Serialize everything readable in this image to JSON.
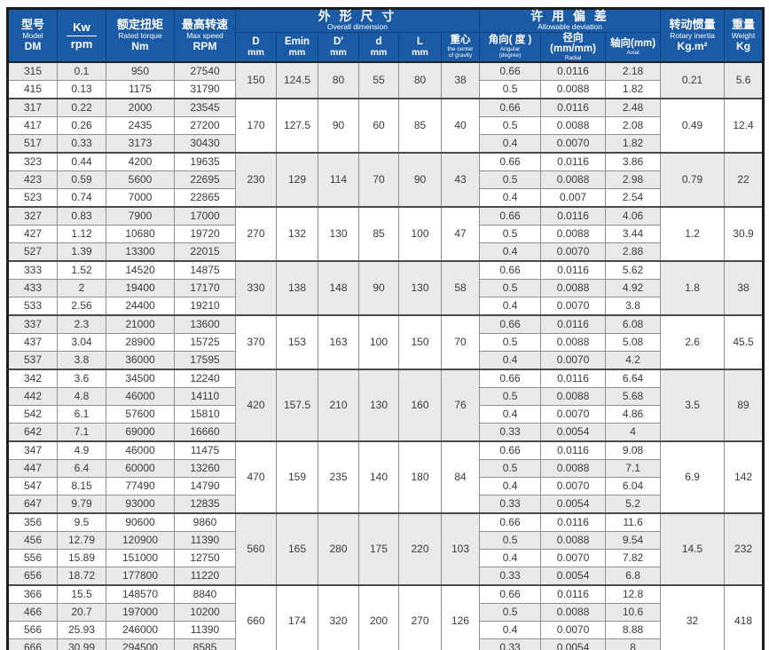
{
  "table": {
    "header": {
      "model": {
        "zh": "型号",
        "en": "Model",
        "code": "DM"
      },
      "power": {
        "top": "Kw",
        "bottom": "rpm"
      },
      "torque": {
        "zh": "额定扭矩",
        "en": "Rated torque",
        "unit": "Nm"
      },
      "speed": {
        "zh": "最高转速",
        "en": "Max speed",
        "unit": "RPM"
      },
      "dimension_group": {
        "zh": "外 形 尺 寸",
        "en": "Overall dimension"
      },
      "dim_cols": [
        {
          "top": "D",
          "bottom": "mm"
        },
        {
          "top": "Emin",
          "bottom": "mm"
        },
        {
          "top": "D′",
          "bottom": "mm"
        },
        {
          "top": "d",
          "bottom": "mm"
        },
        {
          "top": "L",
          "bottom": "mm"
        },
        {
          "top": "重心",
          "bottom": "the center\nof gravity"
        }
      ],
      "deviation_group": {
        "zh": "许 用 偏 差",
        "en": "Allowable deviation"
      },
      "dev_cols": [
        {
          "top": "角向( 度 )",
          "bottom": "Angular\n(degree)"
        },
        {
          "top": "径向(mm/mm)",
          "bottom": "Radial"
        },
        {
          "top": "轴向(mm)",
          "bottom": "Axial"
        }
      ],
      "inertia": {
        "zh": "转动惯量",
        "en": "Rotary inertia",
        "unit": "Kg.m²"
      },
      "weight": {
        "zh": "重量",
        "en": "Weight",
        "unit": "Kg"
      }
    },
    "colors": {
      "header_blue": "#1b5aa5",
      "stripe_gray": "#e9e9e9",
      "border_dark": "#1c1c1c"
    },
    "groups": [
      {
        "dims": {
          "D": "150",
          "Emin": "124.5",
          "Dp": "80",
          "d": "55",
          "L": "80",
          "cg": "38"
        },
        "inertia": "0.21",
        "weight": "5.6",
        "rows": [
          {
            "model": "315",
            "kw": "0.1",
            "torque": "950",
            "speed": "27540",
            "angular": "0.66",
            "radial": "0.0116",
            "axial": "2.18"
          },
          {
            "model": "415",
            "kw": "0.13",
            "torque": "1175",
            "speed": "31790",
            "angular": "0.5",
            "radial": "0.0088",
            "axial": "1.82"
          }
        ]
      },
      {
        "dims": {
          "D": "170",
          "Emin": "127.5",
          "Dp": "90",
          "d": "60",
          "L": "85",
          "cg": "40"
        },
        "inertia": "0.49",
        "weight": "12.4",
        "rows": [
          {
            "model": "317",
            "kw": "0.22",
            "torque": "2000",
            "speed": "23545",
            "angular": "0.66",
            "radial": "0.0116",
            "axial": "2.48"
          },
          {
            "model": "417",
            "kw": "0.26",
            "torque": "2435",
            "speed": "27200",
            "angular": "0.5",
            "radial": "0.0088",
            "axial": "2.08"
          },
          {
            "model": "517",
            "kw": "0.33",
            "torque": "3173",
            "speed": "30430",
            "angular": "0.4",
            "radial": "0.0070",
            "axial": "1.82"
          }
        ]
      },
      {
        "dims": {
          "D": "230",
          "Emin": "129",
          "Dp": "114",
          "d": "70",
          "L": "90",
          "cg": "43"
        },
        "inertia": "0.79",
        "weight": "22",
        "rows": [
          {
            "model": "323",
            "kw": "0.44",
            "torque": "4200",
            "speed": "19635",
            "angular": "0.66",
            "radial": "0.0116",
            "axial": "3.86"
          },
          {
            "model": "423",
            "kw": "0.59",
            "torque": "5600",
            "speed": "22695",
            "angular": "0.5",
            "radial": "0.0088",
            "axial": "2.98"
          },
          {
            "model": "523",
            "kw": "0.74",
            "torque": "7000",
            "speed": "22865",
            "angular": "0.4",
            "radial": "0.007",
            "axial": "2.54"
          }
        ]
      },
      {
        "dims": {
          "D": "270",
          "Emin": "132",
          "Dp": "130",
          "d": "85",
          "L": "100",
          "cg": "47"
        },
        "inertia": "1.2",
        "weight": "30.9",
        "rows": [
          {
            "model": "327",
            "kw": "0.83",
            "torque": "7900",
            "speed": "17000",
            "angular": "0.66",
            "radial": "0.0116",
            "axial": "4.06"
          },
          {
            "model": "427",
            "kw": "1.12",
            "torque": "10680",
            "speed": "19720",
            "angular": "0.5",
            "radial": "0.0088",
            "axial": "3.44"
          },
          {
            "model": "527",
            "kw": "1.39",
            "torque": "13300",
            "speed": "22015",
            "angular": "0.4",
            "radial": "0.0070",
            "axial": "2.88"
          }
        ]
      },
      {
        "dims": {
          "D": "330",
          "Emin": "138",
          "Dp": "148",
          "d": "90",
          "L": "130",
          "cg": "58"
        },
        "inertia": "1.8",
        "weight": "38",
        "rows": [
          {
            "model": "333",
            "kw": "1.52",
            "torque": "14520",
            "speed": "14875",
            "angular": "0.66",
            "radial": "0.0116",
            "axial": "5.62"
          },
          {
            "model": "433",
            "kw": "2",
            "torque": "19400",
            "speed": "17170",
            "angular": "0.5",
            "radial": "0.0088",
            "axial": "4.92"
          },
          {
            "model": "533",
            "kw": "2.56",
            "torque": "24400",
            "speed": "19210",
            "angular": "0.4",
            "radial": "0.0070",
            "axial": "3.8"
          }
        ]
      },
      {
        "dims": {
          "D": "370",
          "Emin": "153",
          "Dp": "163",
          "d": "100",
          "L": "150",
          "cg": "70"
        },
        "inertia": "2.6",
        "weight": "45.5",
        "rows": [
          {
            "model": "337",
            "kw": "2.3",
            "torque": "21000",
            "speed": "13600",
            "angular": "0.66",
            "radial": "0.0116",
            "axial": "6.08"
          },
          {
            "model": "437",
            "kw": "3.04",
            "torque": "28900",
            "speed": "15725",
            "angular": "0.5",
            "radial": "0.0088",
            "axial": "5.08"
          },
          {
            "model": "537",
            "kw": "3.8",
            "torque": "36000",
            "speed": "17595",
            "angular": "0.4",
            "radial": "0.0070",
            "axial": "4.2"
          }
        ]
      },
      {
        "dims": {
          "D": "420",
          "Emin": "157.5",
          "Dp": "210",
          "d": "130",
          "L": "160",
          "cg": "76"
        },
        "inertia": "3.5",
        "weight": "89",
        "rows": [
          {
            "model": "342",
            "kw": "3.6",
            "torque": "34500",
            "speed": "12240",
            "angular": "0.66",
            "radial": "0.0116",
            "axial": "6.64"
          },
          {
            "model": "442",
            "kw": "4.8",
            "torque": "46000",
            "speed": "14110",
            "angular": "0.5",
            "radial": "0.0088",
            "axial": "5.68"
          },
          {
            "model": "542",
            "kw": "6.1",
            "torque": "57600",
            "speed": "15810",
            "angular": "0.4",
            "radial": "0.0070",
            "axial": "4.86"
          },
          {
            "model": "642",
            "kw": "7.1",
            "torque": "69000",
            "speed": "16660",
            "angular": "0.33",
            "radial": "0.0054",
            "axial": "4"
          }
        ]
      },
      {
        "dims": {
          "D": "470",
          "Emin": "159",
          "Dp": "235",
          "d": "140",
          "L": "180",
          "cg": "84"
        },
        "inertia": "6.9",
        "weight": "142",
        "rows": [
          {
            "model": "347",
            "kw": "4.9",
            "torque": "46000",
            "speed": "11475",
            "angular": "0.66",
            "radial": "0.0116",
            "axial": "9.08"
          },
          {
            "model": "447",
            "kw": "6.4",
            "torque": "60000",
            "speed": "13260",
            "angular": "0.5",
            "radial": "0.0088",
            "axial": "7.1"
          },
          {
            "model": "547",
            "kw": "8.15",
            "torque": "77490",
            "speed": "14790",
            "angular": "0.4",
            "radial": "0.0070",
            "axial": "6.04"
          },
          {
            "model": "647",
            "kw": "9.79",
            "torque": "93000",
            "speed": "12835",
            "angular": "0.33",
            "radial": "0.0054",
            "axial": "5.2"
          }
        ]
      },
      {
        "dims": {
          "D": "560",
          "Emin": "165",
          "Dp": "280",
          "d": "175",
          "L": "220",
          "cg": "103"
        },
        "inertia": "14.5",
        "weight": "232",
        "rows": [
          {
            "model": "356",
            "kw": "9.5",
            "torque": "90600",
            "speed": "9860",
            "angular": "0.66",
            "radial": "0.0116",
            "axial": "11.6"
          },
          {
            "model": "456",
            "kw": "12.79",
            "torque": "120900",
            "speed": "11390",
            "angular": "0.5",
            "radial": "0.0088",
            "axial": "9.54"
          },
          {
            "model": "556",
            "kw": "15.89",
            "torque": "151000",
            "speed": "12750",
            "angular": "0.4",
            "radial": "0.0070",
            "axial": "7.82"
          },
          {
            "model": "656",
            "kw": "18.72",
            "torque": "177800",
            "speed": "11220",
            "angular": "0.33",
            "radial": "0.0054",
            "axial": "6.8"
          }
        ]
      },
      {
        "dims": {
          "D": "660",
          "Emin": "174",
          "Dp": "320",
          "d": "200",
          "L": "270",
          "cg": "126"
        },
        "inertia": "32",
        "weight": "418",
        "rows": [
          {
            "model": "366",
            "kw": "15.5",
            "torque": "148570",
            "speed": "8840",
            "angular": "0.66",
            "radial": "0.0116",
            "axial": "12.8"
          },
          {
            "model": "466",
            "kw": "20.7",
            "torque": "197000",
            "speed": "10200",
            "angular": "0.5",
            "radial": "0.0088",
            "axial": "10.6"
          },
          {
            "model": "566",
            "kw": "25.93",
            "torque": "246000",
            "speed": "11390",
            "angular": "0.4",
            "radial": "0.0070",
            "axial": "8.88"
          },
          {
            "model": "666",
            "kw": "30.99",
            "torque": "294500",
            "speed": "8585",
            "angular": "0.33",
            "radial": "0.0054",
            "axial": "8"
          }
        ]
      }
    ]
  }
}
